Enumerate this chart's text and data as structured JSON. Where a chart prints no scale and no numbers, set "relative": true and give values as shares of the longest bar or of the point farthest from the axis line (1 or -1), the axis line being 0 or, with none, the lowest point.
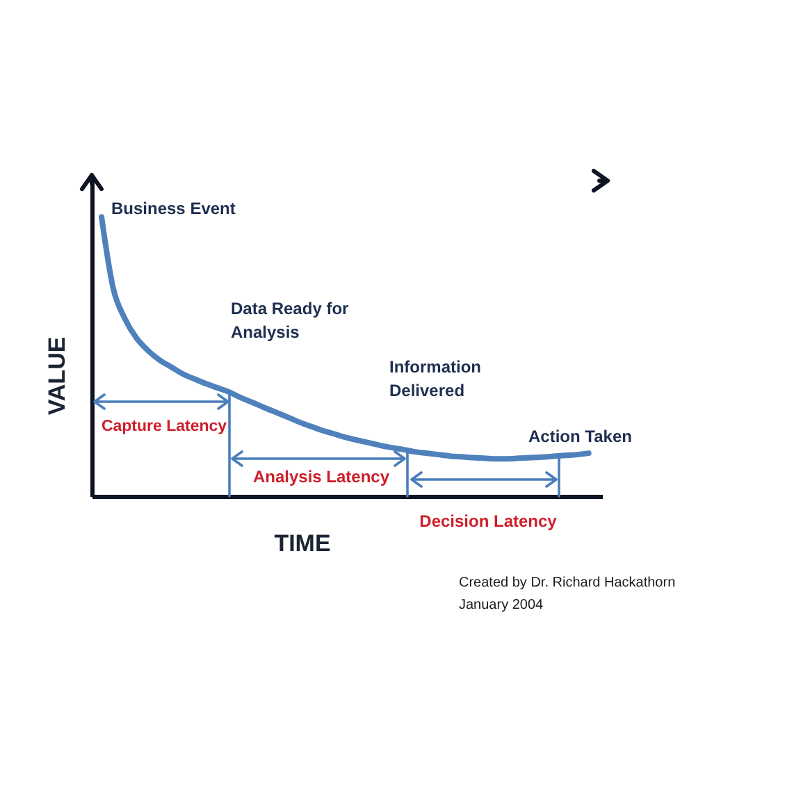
{
  "chart_data": {
    "type": "line",
    "relative": true,
    "xlabel": "TIME",
    "ylabel": "VALUE",
    "categories": [
      null,
      null,
      null,
      null,
      null,
      null,
      null,
      null,
      null,
      null,
      null,
      null,
      null,
      null,
      null,
      null,
      null,
      null,
      null,
      null,
      null,
      null,
      null,
      null,
      null,
      null,
      null,
      null,
      null,
      null,
      null,
      null,
      null,
      null,
      null,
      null,
      null,
      null,
      null,
      null,
      null,
      null,
      null
    ],
    "series": [
      {
        "color": "#4f81bd",
        "values": [
          1,
          0.746,
          0.637,
          0.567,
          0.522,
          0.488,
          0.463,
          0.438,
          0.42,
          0.403,
          0.388,
          0.373,
          0.353,
          0.336,
          0.318,
          0.301,
          0.284,
          0.266,
          0.251,
          0.236,
          0.224,
          0.211,
          0.201,
          0.192,
          0.182,
          0.174,
          0.167,
          0.159,
          0.154,
          0.149,
          0.144,
          0.141,
          0.138,
          0.136,
          0.134,
          0.134,
          0.136,
          0.138,
          0.14,
          0.143,
          0.146,
          0.149,
          0.154
        ]
      }
    ],
    "annotations": [
      "Business Event",
      "Data Ready for Analysis",
      "Information Delivered",
      "Action Taken",
      "Capture Latency",
      "Analysis Latency",
      "Decision Latency",
      "Created by Dr. Richard Hackathorn",
      "January 2004"
    ]
  }
}
